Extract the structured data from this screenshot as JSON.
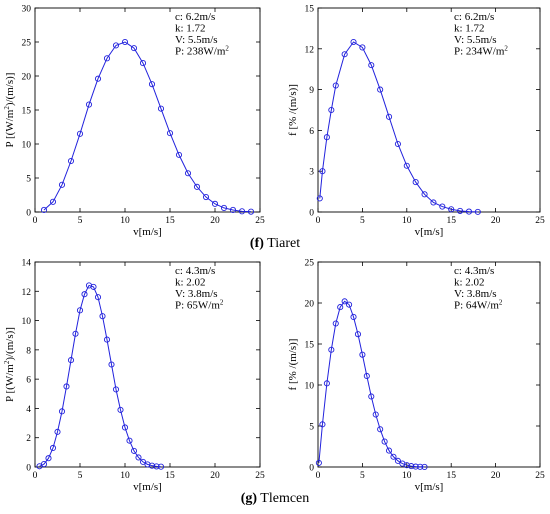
{
  "chart_data": [
    {
      "type": "line",
      "panel": "f-left",
      "xlabel": "v[m/s]",
      "ylabel": "P [(W/m²)/(m/s)]",
      "xlim": [
        0,
        25
      ],
      "ylim": [
        0,
        30
      ],
      "xticks": [
        0,
        5,
        10,
        15,
        20,
        25
      ],
      "yticks": [
        0,
        5,
        10,
        15,
        20,
        25,
        30
      ],
      "annotations": [
        "c: 6.2m/s",
        "k: 1.72",
        "V: 5.5m/s",
        "P: 238W/m²"
      ],
      "series": [
        {
          "x": [
            1,
            2,
            3,
            4,
            5,
            6,
            7,
            8,
            9,
            10,
            11,
            12,
            13,
            14,
            15,
            16,
            17,
            18,
            19,
            20,
            21,
            22,
            23,
            24
          ],
          "y": [
            0.3,
            1.5,
            4.0,
            7.5,
            11.5,
            15.8,
            19.6,
            22.6,
            24.5,
            25.0,
            24.1,
            21.9,
            18.8,
            15.2,
            11.6,
            8.4,
            5.7,
            3.7,
            2.2,
            1.2,
            0.6,
            0.3,
            0.1,
            0.05
          ]
        }
      ]
    },
    {
      "type": "line",
      "panel": "f-right",
      "xlabel": "v[m/s]",
      "ylabel": "f [% /(m/s)]",
      "xlim": [
        0,
        25
      ],
      "ylim": [
        0,
        15
      ],
      "xticks": [
        0,
        5,
        10,
        15,
        20,
        25
      ],
      "yticks": [
        0,
        3,
        6,
        9,
        12,
        15
      ],
      "annotations": [
        "c: 6.2m/s",
        "k: 1.72",
        "V: 5.5m/s",
        "P: 234W/m²"
      ],
      "series": [
        {
          "x": [
            0.2,
            0.5,
            1,
            1.5,
            2,
            3,
            4,
            5,
            6,
            7,
            8,
            9,
            10,
            11,
            12,
            13,
            14,
            15,
            16,
            17,
            18
          ],
          "y": [
            1.0,
            3.0,
            5.5,
            7.5,
            9.3,
            11.6,
            12.5,
            12.1,
            10.8,
            9.0,
            7.0,
            5.0,
            3.4,
            2.2,
            1.3,
            0.7,
            0.4,
            0.2,
            0.08,
            0.03,
            0.01
          ]
        }
      ]
    },
    {
      "type": "line",
      "panel": "g-left",
      "xlabel": "v[m/s]",
      "ylabel": "P [(W/m²)/(m/s)]",
      "xlim": [
        0,
        25
      ],
      "ylim": [
        0,
        14
      ],
      "xticks": [
        0,
        5,
        10,
        15,
        20,
        25
      ],
      "yticks": [
        0,
        2,
        4,
        6,
        8,
        10,
        12,
        14
      ],
      "annotations": [
        "c: 4.3m/s",
        "k: 2.02",
        "V: 3.8m/s",
        "P: 65W/m²"
      ],
      "series": [
        {
          "x": [
            0.5,
            1,
            1.5,
            2,
            2.5,
            3,
            3.5,
            4,
            4.5,
            5,
            5.5,
            6,
            6.5,
            7,
            7.5,
            8,
            8.5,
            9,
            9.5,
            10,
            10.5,
            11,
            11.5,
            12,
            12.5,
            13,
            13.5,
            14
          ],
          "y": [
            0.05,
            0.2,
            0.6,
            1.3,
            2.4,
            3.8,
            5.5,
            7.3,
            9.1,
            10.7,
            11.8,
            12.4,
            12.3,
            11.6,
            10.3,
            8.7,
            7.0,
            5.3,
            3.9,
            2.7,
            1.8,
            1.1,
            0.65,
            0.35,
            0.18,
            0.09,
            0.04,
            0.02
          ]
        }
      ]
    },
    {
      "type": "line",
      "panel": "g-right",
      "xlabel": "v[m/s]",
      "ylabel": "f [% /(m/s)]",
      "xlim": [
        0,
        25
      ],
      "ylim": [
        0,
        25
      ],
      "xticks": [
        0,
        5,
        10,
        15,
        20,
        25
      ],
      "yticks": [
        0,
        5,
        10,
        15,
        20,
        25
      ],
      "annotations": [
        "c: 4.3m/s",
        "k: 2.02",
        "V: 3.8m/s",
        "P: 64W/m²"
      ],
      "series": [
        {
          "x": [
            0.1,
            0.5,
            1,
            1.5,
            2,
            2.5,
            3,
            3.5,
            4,
            4.5,
            5,
            5.5,
            6,
            6.5,
            7,
            7.5,
            8,
            8.5,
            9,
            9.5,
            10,
            10.5,
            11,
            11.5,
            12
          ],
          "y": [
            0.5,
            5.2,
            10.2,
            14.3,
            17.5,
            19.5,
            20.2,
            19.8,
            18.3,
            16.2,
            13.7,
            11.1,
            8.6,
            6.4,
            4.6,
            3.1,
            2.0,
            1.25,
            0.75,
            0.42,
            0.22,
            0.11,
            0.05,
            0.025,
            0.01
          ]
        }
      ]
    }
  ],
  "captions": {
    "f": {
      "letter": "(f)",
      "name": " Tiaret"
    },
    "g": {
      "letter": "(g)",
      "name": " Tlemcen"
    }
  },
  "colors": {
    "series": "#2222dd"
  }
}
